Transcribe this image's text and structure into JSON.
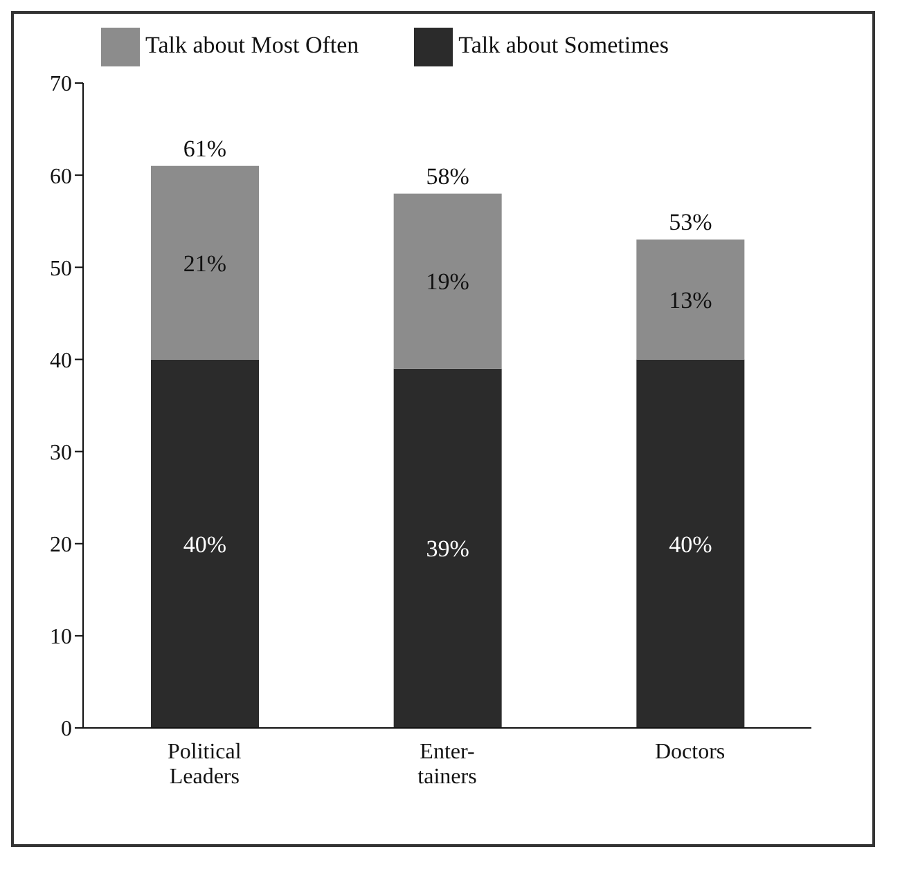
{
  "chart_data": {
    "type": "bar",
    "stacked": true,
    "categories": [
      "Political\nLeaders",
      "Enter-\ntainers",
      "Doctors"
    ],
    "series": [
      {
        "name": "Talk about Sometimes",
        "color": "#2b2b2b",
        "values": [
          40,
          39,
          40
        ],
        "value_labels": [
          "40%",
          "39%",
          "40%"
        ]
      },
      {
        "name": "Talk about Most Often",
        "color": "#8c8c8c",
        "values": [
          21,
          19,
          13
        ],
        "value_labels": [
          "21%",
          "19%",
          "13%"
        ]
      }
    ],
    "totals": [
      "61%",
      "58%",
      "53%"
    ],
    "ylim": [
      0,
      70
    ],
    "yticks": [
      0,
      10,
      20,
      30,
      40,
      50,
      60,
      70
    ],
    "grid": false,
    "legend": "top"
  }
}
